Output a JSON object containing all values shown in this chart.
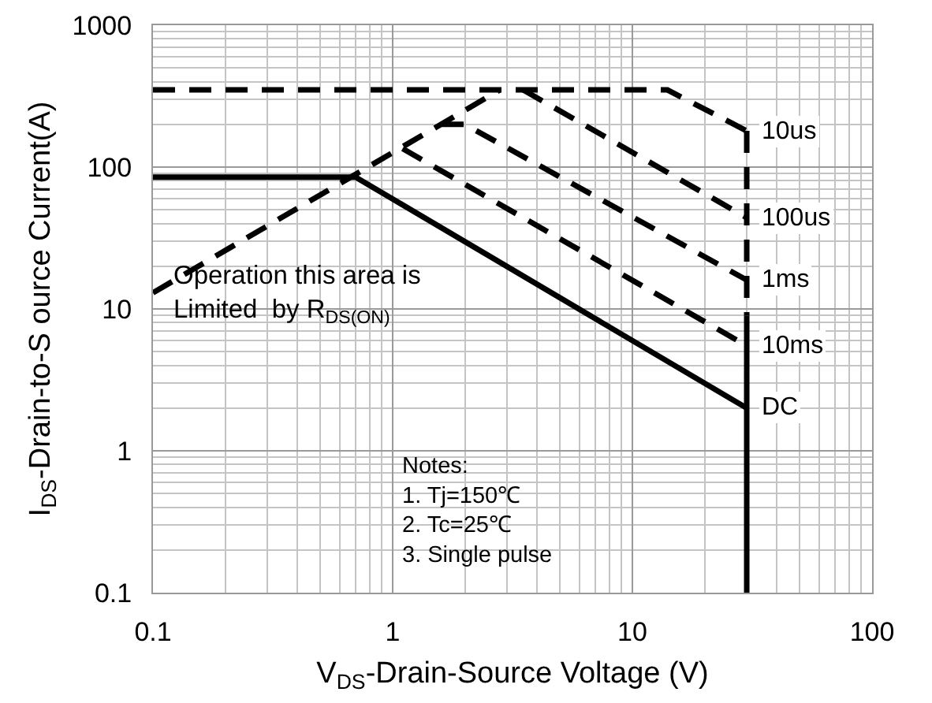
{
  "chart_data": {
    "type": "line",
    "xlabel": "V$_{DS}$-Drain-Source Voltage (V)",
    "ylabel": "I$_{DS}$-Drain-to-S ource Current(A)",
    "annotations": [
      "Operation this area is\nLimited  by R$_{DS(ON)}$",
      "Notes:\n1. Tj=150℃\n2. Tc=25℃\n3. Single pulse"
    ],
    "series": [
      {
        "name": "10us",
        "color": "#000000",
        "line_style": "dashed",
        "x": [
          0.1,
          14,
          30
        ],
        "values": [
          350,
          350,
          180
        ]
      },
      {
        "name": "100us",
        "color": "#000000",
        "line_style": "dashed",
        "x": [
          3.5,
          30
        ],
        "values": [
          350,
          44
        ]
      },
      {
        "name": "1ms",
        "color": "#000000",
        "line_style": "dashed",
        "x": [
          1.6,
          2,
          30
        ],
        "values": [
          200,
          200,
          16
        ]
      },
      {
        "name": "10ms",
        "color": "#000000",
        "line_style": "dashed",
        "x": [
          1.1,
          30
        ],
        "values": [
          135,
          5.5
        ]
      },
      {
        "name": "DC",
        "color": "#000000",
        "line_style": "solid",
        "x": [
          0.1,
          0.7,
          30
        ],
        "values": [
          85,
          85,
          2
        ]
      },
      {
        "color": "#000000",
        "line_style": "dashed",
        "x": [
          0.1,
          2.8
        ],
        "values": [
          13,
          350
        ]
      },
      {
        "color": "#000000",
        "line_style": "dashed",
        "x": [
          30,
          30
        ],
        "values": [
          180,
          9
        ]
      },
      {
        "color": "#000000",
        "line_style": "solid",
        "x": [
          30,
          30
        ],
        "values": [
          9,
          0.1
        ]
      }
    ],
    "xlim": [
      0.1,
      100
    ],
    "ylim": [
      0.1,
      1000
    ],
    "xticks": [
      0.1,
      1,
      10,
      100
    ],
    "yticks": [
      0.1,
      1,
      10,
      100,
      1000
    ],
    "log": "xy",
    "grid": true,
    "legend": false
  }
}
